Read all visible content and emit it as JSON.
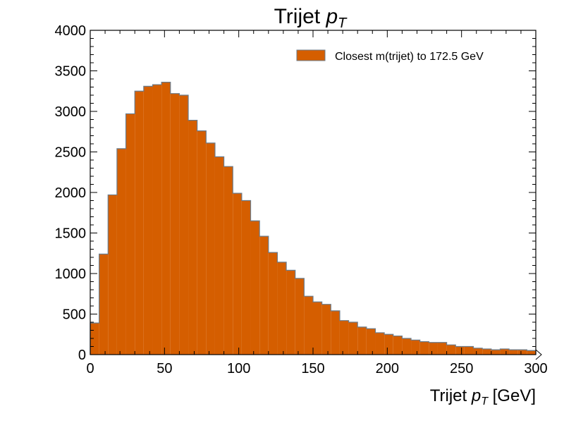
{
  "chart_data": {
    "type": "bar",
    "title": {
      "text": "Trijet ",
      "var": "p",
      "sub": "T"
    },
    "xlabel": {
      "text": "Trijet ",
      "var": "p",
      "sub": "T",
      "suffix": " [GeV]"
    },
    "ylabel": "",
    "xlim": [
      0,
      300
    ],
    "ylim": [
      0,
      4000
    ],
    "x_ticks": [
      0,
      50,
      100,
      150,
      200,
      250,
      300
    ],
    "y_ticks": [
      0,
      500,
      1000,
      1500,
      2000,
      2500,
      3000,
      3500,
      4000
    ],
    "grid": false,
    "legend_position": "top-right",
    "series": [
      {
        "name": "Closest m(trijet) to 172.5 GeV",
        "color": "#d55e00",
        "edge_color": "#6b7b8a",
        "bin_edges": [
          0,
          6,
          12,
          18,
          24,
          30,
          36,
          42,
          48,
          54,
          60,
          66,
          72,
          78,
          84,
          90,
          96,
          102,
          108,
          114,
          120,
          126,
          132,
          138,
          144,
          150,
          156,
          162,
          168,
          174,
          180,
          186,
          192,
          198,
          204,
          210,
          216,
          222,
          228,
          234,
          240,
          246,
          252,
          258,
          264,
          270,
          276,
          282,
          288,
          294,
          300
        ],
        "values": [
          390,
          1240,
          1970,
          2540,
          2970,
          3250,
          3310,
          3330,
          3360,
          3220,
          3200,
          2890,
          2760,
          2610,
          2440,
          2320,
          1990,
          1900,
          1650,
          1460,
          1260,
          1140,
          1040,
          940,
          720,
          650,
          620,
          540,
          420,
          400,
          340,
          320,
          270,
          250,
          230,
          200,
          180,
          160,
          150,
          150,
          120,
          100,
          100,
          80,
          70,
          60,
          70,
          60,
          60,
          50
        ]
      }
    ]
  }
}
